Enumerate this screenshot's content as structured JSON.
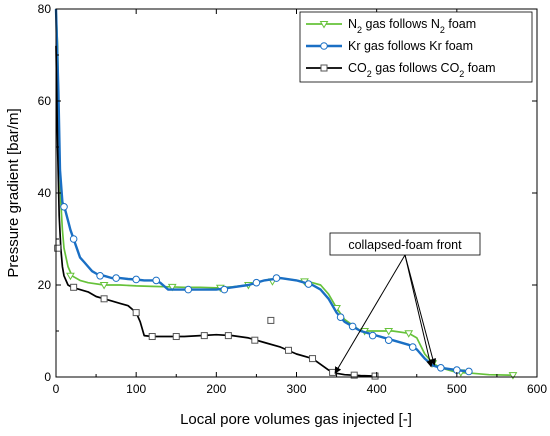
{
  "chart_data": {
    "type": "line",
    "title": "",
    "xlabel": "Local pore volumes gas injected [-]",
    "ylabel": "Pressure gradient [bar/m]",
    "xlim": [
      0,
      600
    ],
    "ylim": [
      0,
      80
    ],
    "x_ticks": [
      "0",
      "100",
      "200",
      "300",
      "400",
      "500",
      "600"
    ],
    "y_ticks": [
      "0",
      "20",
      "40",
      "60",
      "80"
    ],
    "grid": false,
    "legend_position": "top-right",
    "series": [
      {
        "name_parts": [
          "N",
          "2",
          " gas follows N",
          "2",
          " foam"
        ],
        "color": "#66c23a",
        "marker": "triangle-down-open",
        "points": [
          [
            0,
            80
          ],
          [
            2,
            72
          ],
          [
            4,
            50
          ],
          [
            6,
            38
          ],
          [
            8,
            32
          ],
          [
            10,
            28
          ],
          [
            15,
            24
          ],
          [
            20,
            22
          ],
          [
            30,
            21
          ],
          [
            40,
            20.5
          ],
          [
            60,
            20
          ],
          [
            80,
            20
          ],
          [
            100,
            19.8
          ],
          [
            120,
            19.7
          ],
          [
            140,
            19.6
          ],
          [
            160,
            19.5
          ],
          [
            180,
            19.5
          ],
          [
            200,
            19.4
          ],
          [
            220,
            19.6
          ],
          [
            240,
            20
          ],
          [
            260,
            21
          ],
          [
            280,
            21.5
          ],
          [
            300,
            21
          ],
          [
            320,
            20.5
          ],
          [
            330,
            20
          ],
          [
            340,
            18
          ],
          [
            350,
            15
          ],
          [
            360,
            12.5
          ],
          [
            380,
            10
          ],
          [
            400,
            10
          ],
          [
            420,
            10
          ],
          [
            440,
            9.5
          ],
          [
            450,
            8.5
          ],
          [
            460,
            5
          ],
          [
            470,
            3
          ],
          [
            480,
            2
          ],
          [
            500,
            1
          ],
          [
            520,
            0.8
          ],
          [
            540,
            0.5
          ],
          [
            570,
            0.4
          ]
        ],
        "marker_points": [
          [
            18,
            22
          ],
          [
            60,
            20
          ],
          [
            145,
            19.6
          ],
          [
            205,
            19.4
          ],
          [
            240,
            20
          ],
          [
            270,
            20.8
          ],
          [
            310,
            20.8
          ],
          [
            350,
            15
          ],
          [
            385,
            10
          ],
          [
            415,
            10
          ],
          [
            440,
            9.5
          ],
          [
            470,
            3
          ],
          [
            505,
            1
          ],
          [
            570,
            0.4
          ]
        ]
      },
      {
        "name_parts": [
          "Kr gas follows Kr foam"
        ],
        "color": "#1a6fc4",
        "marker": "circle-open",
        "points": [
          [
            0,
            80
          ],
          [
            3,
            62
          ],
          [
            5,
            45
          ],
          [
            8,
            38
          ],
          [
            10,
            37
          ],
          [
            12,
            36
          ],
          [
            15,
            34
          ],
          [
            18,
            32
          ],
          [
            22,
            30
          ],
          [
            26,
            28
          ],
          [
            30,
            26
          ],
          [
            35,
            25
          ],
          [
            40,
            24
          ],
          [
            45,
            23
          ],
          [
            50,
            22.5
          ],
          [
            55,
            22
          ],
          [
            60,
            22
          ],
          [
            70,
            21.5
          ],
          [
            80,
            21.5
          ],
          [
            90,
            21.3
          ],
          [
            100,
            21.2
          ],
          [
            110,
            21
          ],
          [
            120,
            21
          ],
          [
            130,
            20.5
          ],
          [
            140,
            19
          ],
          [
            160,
            19
          ],
          [
            180,
            19
          ],
          [
            200,
            19
          ],
          [
            220,
            19.5
          ],
          [
            240,
            20
          ],
          [
            260,
            21
          ],
          [
            280,
            21.5
          ],
          [
            300,
            21
          ],
          [
            320,
            20
          ],
          [
            330,
            19
          ],
          [
            340,
            17
          ],
          [
            350,
            14
          ],
          [
            360,
            12
          ],
          [
            370,
            11
          ],
          [
            380,
            10
          ],
          [
            400,
            9
          ],
          [
            420,
            8
          ],
          [
            440,
            7
          ],
          [
            450,
            6
          ],
          [
            460,
            4
          ],
          [
            470,
            2.5
          ],
          [
            480,
            2
          ],
          [
            500,
            1.5
          ],
          [
            515,
            1.2
          ]
        ],
        "marker_points": [
          [
            10,
            37
          ],
          [
            22,
            30
          ],
          [
            55,
            22
          ],
          [
            75,
            21.5
          ],
          [
            100,
            21.2
          ],
          [
            125,
            21
          ],
          [
            165,
            19
          ],
          [
            210,
            19
          ],
          [
            250,
            20.5
          ],
          [
            275,
            21.5
          ],
          [
            315,
            20.2
          ],
          [
            355,
            13
          ],
          [
            370,
            11
          ],
          [
            395,
            9
          ],
          [
            415,
            8
          ],
          [
            445,
            6.5
          ],
          [
            480,
            2
          ],
          [
            500,
            1.5
          ],
          [
            515,
            1.2
          ]
        ]
      },
      {
        "name_parts": [
          "CO",
          "2",
          " gas follows CO",
          "2",
          " foam"
        ],
        "color": "#000000",
        "marker": "square-open",
        "points": [
          [
            0,
            72
          ],
          [
            2,
            50
          ],
          [
            4,
            35
          ],
          [
            6,
            28
          ],
          [
            8,
            24
          ],
          [
            10,
            22
          ],
          [
            15,
            20
          ],
          [
            20,
            19.5
          ],
          [
            30,
            19
          ],
          [
            40,
            18.5
          ],
          [
            50,
            17.5
          ],
          [
            60,
            17
          ],
          [
            70,
            16.5
          ],
          [
            80,
            16
          ],
          [
            90,
            15.5
          ],
          [
            100,
            14
          ],
          [
            105,
            12
          ],
          [
            110,
            9
          ],
          [
            120,
            8.8
          ],
          [
            140,
            8.8
          ],
          [
            160,
            8.8
          ],
          [
            180,
            9
          ],
          [
            200,
            9.2
          ],
          [
            220,
            9
          ],
          [
            240,
            8.5
          ],
          [
            260,
            7.5
          ],
          [
            280,
            6.5
          ],
          [
            300,
            5
          ],
          [
            320,
            4
          ],
          [
            340,
            1.5
          ],
          [
            350,
            0.8
          ],
          [
            360,
            0.5
          ],
          [
            380,
            0.3
          ],
          [
            400,
            0.2
          ]
        ],
        "marker_points": [
          [
            2,
            28
          ],
          [
            22,
            19.5
          ],
          [
            60,
            17
          ],
          [
            100,
            14
          ],
          [
            120,
            8.8
          ],
          [
            150,
            8.8
          ],
          [
            185,
            9
          ],
          [
            215,
            9
          ],
          [
            248,
            8
          ],
          [
            268,
            12.3
          ],
          [
            290,
            5.8
          ],
          [
            320,
            4
          ],
          [
            345,
            1
          ],
          [
            372,
            0.4
          ],
          [
            398,
            0.2
          ]
        ]
      }
    ],
    "annotation": {
      "text": "collapsed-foam front",
      "arrows_to": [
        [
          348,
          0.8
        ],
        [
          468,
          2.2
        ],
        [
          472,
          2.6
        ]
      ]
    }
  }
}
